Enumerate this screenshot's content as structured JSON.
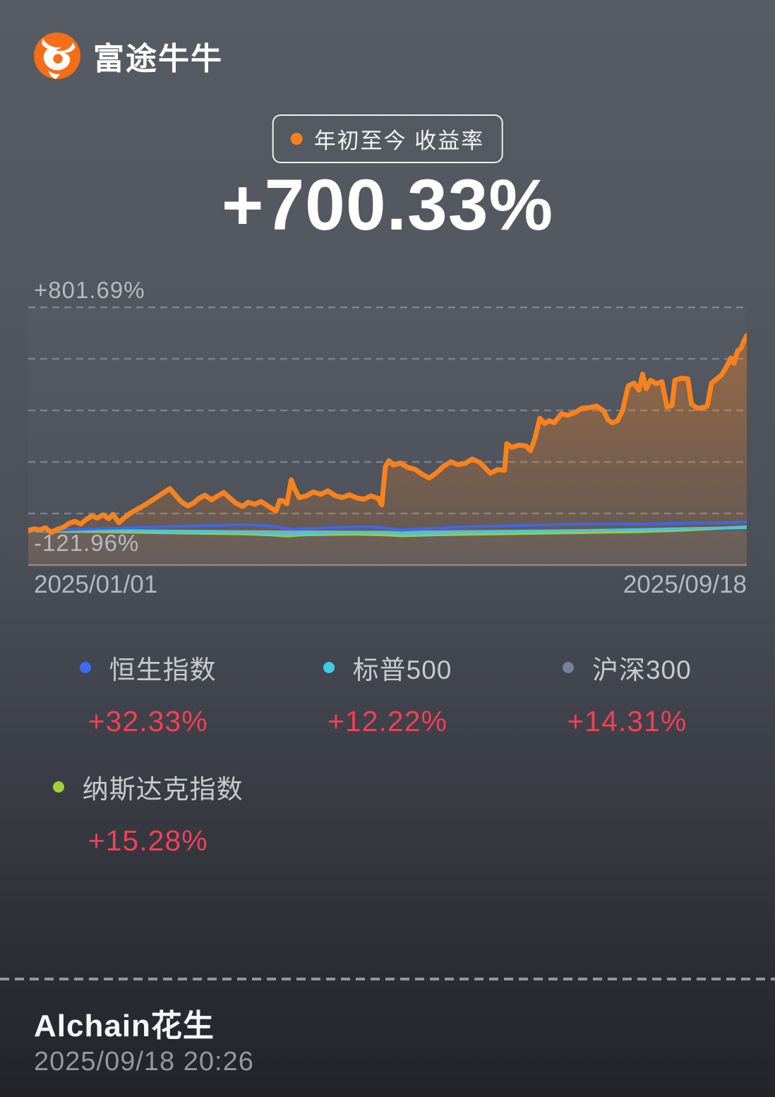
{
  "header": {
    "app_name": "富途牛牛"
  },
  "summary": {
    "badge_label": "年初至今 收益率",
    "return_value": "+700.33%"
  },
  "chart": {
    "y_max_label": "+801.69%",
    "y_min_label": "-121.96%",
    "x_start_label": "2025/01/01",
    "x_end_label": "2025/09/18"
  },
  "legend": [
    {
      "name": "恒生指数",
      "value": "+32.33%",
      "color": "#3d6bf3"
    },
    {
      "name": "标普500",
      "value": "+12.22%",
      "color": "#40c9e8"
    },
    {
      "name": "沪深300",
      "value": "+14.31%",
      "color": "#75829b"
    },
    {
      "name": "纳斯达克指数",
      "value": "+15.28%",
      "color": "#a5ce3a"
    }
  ],
  "footer": {
    "username": "Alchain花生",
    "timestamp": "2025/09/18 20:26"
  },
  "colors": {
    "accent_orange": "#f7811f",
    "value_red": "#f43f55",
    "grid": "rgba(255,255,255,0.26)",
    "axis_solid": "rgba(255,255,255,0.32)"
  },
  "chart_data": {
    "type": "line",
    "title": "年初至今 收益率",
    "x_range": [
      "2025/01/01",
      "2025/09/18"
    ],
    "ylim": [
      -121.96,
      801.69
    ],
    "grid": "horizontal-dashed, 6 lines, legend below chart",
    "main_series": {
      "name": "年初至今 收益率",
      "final_value": 700.33,
      "color": "#f8821d",
      "points": [
        [
          0,
          2
        ],
        [
          0.008,
          8
        ],
        [
          0.016,
          4
        ],
        [
          0.024,
          12
        ],
        [
          0.032,
          -5
        ],
        [
          0.04,
          6
        ],
        [
          0.049,
          14
        ],
        [
          0.057,
          28
        ],
        [
          0.065,
          35
        ],
        [
          0.073,
          25
        ],
        [
          0.081,
          42
        ],
        [
          0.089,
          55
        ],
        [
          0.096,
          46
        ],
        [
          0.104,
          58
        ],
        [
          0.112,
          44
        ],
        [
          0.118,
          60
        ],
        [
          0.126,
          30
        ],
        [
          0.134,
          48
        ],
        [
          0.142,
          64
        ],
        [
          0.153,
          80
        ],
        [
          0.165,
          98
        ],
        [
          0.177,
          118
        ],
        [
          0.19,
          140
        ],
        [
          0.197,
          152
        ],
        [
          0.205,
          128
        ],
        [
          0.213,
          105
        ],
        [
          0.222,
          90
        ],
        [
          0.23,
          100
        ],
        [
          0.238,
          118
        ],
        [
          0.246,
          128
        ],
        [
          0.255,
          112
        ],
        [
          0.263,
          125
        ],
        [
          0.272,
          138
        ],
        [
          0.28,
          120
        ],
        [
          0.289,
          100
        ],
        [
          0.298,
          88
        ],
        [
          0.306,
          103
        ],
        [
          0.315,
          96
        ],
        [
          0.324,
          106
        ],
        [
          0.332,
          92
        ],
        [
          0.34,
          80
        ],
        [
          0.345,
          72
        ],
        [
          0.35,
          110
        ],
        [
          0.355,
          108
        ],
        [
          0.36,
          98
        ],
        [
          0.366,
          183
        ],
        [
          0.371,
          150
        ],
        [
          0.377,
          120
        ],
        [
          0.387,
          126
        ],
        [
          0.397,
          140
        ],
        [
          0.407,
          131
        ],
        [
          0.417,
          144
        ],
        [
          0.427,
          127
        ],
        [
          0.437,
          120
        ],
        [
          0.447,
          130
        ],
        [
          0.457,
          119
        ],
        [
          0.467,
          114
        ],
        [
          0.477,
          126
        ],
        [
          0.487,
          117
        ],
        [
          0.492,
          94
        ],
        [
          0.497,
          230
        ],
        [
          0.502,
          252
        ],
        [
          0.508,
          236
        ],
        [
          0.518,
          244
        ],
        [
          0.528,
          228
        ],
        [
          0.538,
          222
        ],
        [
          0.548,
          204
        ],
        [
          0.558,
          190
        ],
        [
          0.568,
          208
        ],
        [
          0.578,
          232
        ],
        [
          0.588,
          248
        ],
        [
          0.598,
          238
        ],
        [
          0.608,
          242
        ],
        [
          0.618,
          258
        ],
        [
          0.629,
          245
        ],
        [
          0.643,
          207
        ],
        [
          0.653,
          220
        ],
        [
          0.663,
          218
        ],
        [
          0.666,
          313
        ],
        [
          0.673,
          300
        ],
        [
          0.683,
          308
        ],
        [
          0.693,
          305
        ],
        [
          0.699,
          288
        ],
        [
          0.705,
          330
        ],
        [
          0.712,
          404
        ],
        [
          0.719,
          385
        ],
        [
          0.725,
          395
        ],
        [
          0.732,
          388
        ],
        [
          0.742,
          420
        ],
        [
          0.751,
          415
        ],
        [
          0.761,
          425
        ],
        [
          0.771,
          440
        ],
        [
          0.781,
          442
        ],
        [
          0.791,
          448
        ],
        [
          0.801,
          430
        ],
        [
          0.807,
          398
        ],
        [
          0.813,
          388
        ],
        [
          0.82,
          395
        ],
        [
          0.827,
          430
        ],
        [
          0.835,
          520
        ],
        [
          0.843,
          530
        ],
        [
          0.85,
          505
        ],
        [
          0.855,
          562
        ],
        [
          0.86,
          510
        ],
        [
          0.866,
          540
        ],
        [
          0.874,
          528
        ],
        [
          0.882,
          535
        ],
        [
          0.889,
          445
        ],
        [
          0.896,
          450
        ],
        [
          0.9,
          540
        ],
        [
          0.909,
          548
        ],
        [
          0.918,
          545
        ],
        [
          0.923,
          455
        ],
        [
          0.931,
          440
        ],
        [
          0.938,
          442
        ],
        [
          0.945,
          448
        ],
        [
          0.951,
          530
        ],
        [
          0.958,
          545
        ],
        [
          0.965,
          560
        ],
        [
          0.972,
          590
        ],
        [
          0.978,
          620
        ],
        [
          0.982,
          600
        ],
        [
          0.987,
          645
        ],
        [
          0.992,
          655
        ],
        [
          0.996,
          680
        ],
        [
          1,
          700.33
        ]
      ]
    },
    "benchmarks": [
      {
        "name": "纳斯达克指数",
        "final_value": 15.28,
        "color": "#a2cb3d",
        "points": [
          [
            0,
            0
          ],
          [
            0.05,
            -1
          ],
          [
            0.1,
            -2
          ],
          [
            0.15,
            -4
          ],
          [
            0.2,
            -6
          ],
          [
            0.25,
            -8
          ],
          [
            0.3,
            -10
          ],
          [
            0.34,
            -14
          ],
          [
            0.36,
            -18
          ],
          [
            0.38,
            -14
          ],
          [
            0.42,
            -12
          ],
          [
            0.46,
            -11
          ],
          [
            0.5,
            -14
          ],
          [
            0.52,
            -17
          ],
          [
            0.56,
            -14
          ],
          [
            0.6,
            -12
          ],
          [
            0.65,
            -10
          ],
          [
            0.7,
            -8
          ],
          [
            0.75,
            -6
          ],
          [
            0.8,
            -4
          ],
          [
            0.85,
            -2
          ],
          [
            0.9,
            2
          ],
          [
            0.95,
            8
          ],
          [
            1,
            15.28
          ]
        ]
      },
      {
        "name": "沪深300",
        "final_value": 14.31,
        "color": "#97a1ae",
        "points": [
          [
            0,
            0
          ],
          [
            0.1,
            1
          ],
          [
            0.2,
            0
          ],
          [
            0.3,
            -2
          ],
          [
            0.4,
            -3
          ],
          [
            0.5,
            -4
          ],
          [
            0.52,
            -6
          ],
          [
            0.55,
            -3
          ],
          [
            0.6,
            -2
          ],
          [
            0.65,
            -1
          ],
          [
            0.7,
            0
          ],
          [
            0.75,
            1
          ],
          [
            0.8,
            2
          ],
          [
            0.85,
            4
          ],
          [
            0.9,
            7
          ],
          [
            0.95,
            10
          ],
          [
            1,
            14.31
          ]
        ]
      },
      {
        "name": "标普500",
        "final_value": 12.22,
        "color": "#43c9dc",
        "points": [
          [
            0,
            0
          ],
          [
            0.05,
            1
          ],
          [
            0.1,
            2
          ],
          [
            0.15,
            1
          ],
          [
            0.2,
            -2
          ],
          [
            0.25,
            -3
          ],
          [
            0.3,
            -5
          ],
          [
            0.34,
            -8
          ],
          [
            0.36,
            -12
          ],
          [
            0.38,
            -9
          ],
          [
            0.42,
            -6
          ],
          [
            0.46,
            -4
          ],
          [
            0.5,
            -6
          ],
          [
            0.52,
            -10
          ],
          [
            0.56,
            -8
          ],
          [
            0.6,
            -5
          ],
          [
            0.65,
            -3
          ],
          [
            0.7,
            -1
          ],
          [
            0.75,
            1
          ],
          [
            0.8,
            3
          ],
          [
            0.85,
            5
          ],
          [
            0.9,
            8
          ],
          [
            0.95,
            10
          ],
          [
            1,
            12.22
          ]
        ]
      },
      {
        "name": "恒生指数",
        "final_value": 32.33,
        "color": "#3e68e2",
        "points": [
          [
            0,
            0
          ],
          [
            0.03,
            2
          ],
          [
            0.06,
            5
          ],
          [
            0.09,
            8
          ],
          [
            0.12,
            10
          ],
          [
            0.15,
            13
          ],
          [
            0.18,
            15
          ],
          [
            0.21,
            17
          ],
          [
            0.24,
            19
          ],
          [
            0.27,
            21
          ],
          [
            0.3,
            23
          ],
          [
            0.33,
            20
          ],
          [
            0.36,
            10
          ],
          [
            0.37,
            6
          ],
          [
            0.39,
            9
          ],
          [
            0.42,
            12
          ],
          [
            0.45,
            14
          ],
          [
            0.48,
            15
          ],
          [
            0.51,
            8
          ],
          [
            0.52,
            4
          ],
          [
            0.55,
            8
          ],
          [
            0.58,
            12
          ],
          [
            0.61,
            15
          ],
          [
            0.64,
            17
          ],
          [
            0.67,
            19
          ],
          [
            0.7,
            21
          ],
          [
            0.73,
            23
          ],
          [
            0.76,
            24
          ],
          [
            0.79,
            25
          ],
          [
            0.82,
            26
          ],
          [
            0.85,
            24
          ],
          [
            0.88,
            26
          ],
          [
            0.91,
            28
          ],
          [
            0.94,
            29
          ],
          [
            0.97,
            30
          ],
          [
            1,
            32.33
          ]
        ]
      }
    ]
  }
}
